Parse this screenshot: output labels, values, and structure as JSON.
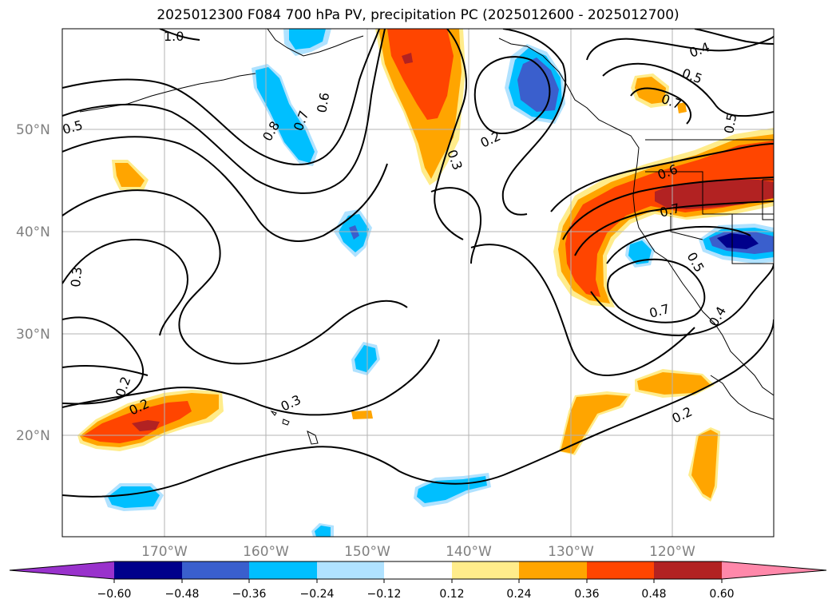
{
  "title": "2025012300 F084 700 hPa PV, precipitation PC (2025012600 - 2025012700)",
  "map": {
    "lat_labels": [
      "50°N",
      "40°N",
      "30°N",
      "20°N"
    ],
    "lon_labels": [
      "170°W",
      "160°W",
      "150°W",
      "140°W",
      "130°W",
      "120°W"
    ],
    "extent": {
      "lon": [
        -180,
        -110
      ],
      "lat": [
        10,
        60
      ]
    },
    "contour_labels": [
      "1.0",
      "0.5",
      "0.8",
      "0.7",
      "0.6",
      "0.3",
      "0.2",
      "0.2",
      "0.3",
      "0.2",
      "0.3",
      "0.4",
      "0.5",
      "0.7",
      "0.5",
      "0.6",
      "0.7",
      "0.5",
      "0.7",
      "0.4",
      "0.2"
    ]
  },
  "colorbar": {
    "ticks": [
      "−0.60",
      "−0.48",
      "−0.36",
      "−0.24",
      "−0.12",
      "0.12",
      "0.24",
      "0.36",
      "0.48",
      "0.60"
    ],
    "colors": [
      "#9932cc",
      "#00008b",
      "#3a5fcd",
      "#00bfff",
      "#b0e2ff",
      "#ffffff",
      "#ffec8b",
      "#ffa500",
      "#ff4500",
      "#b22222",
      "#ff88aa"
    ]
  }
}
